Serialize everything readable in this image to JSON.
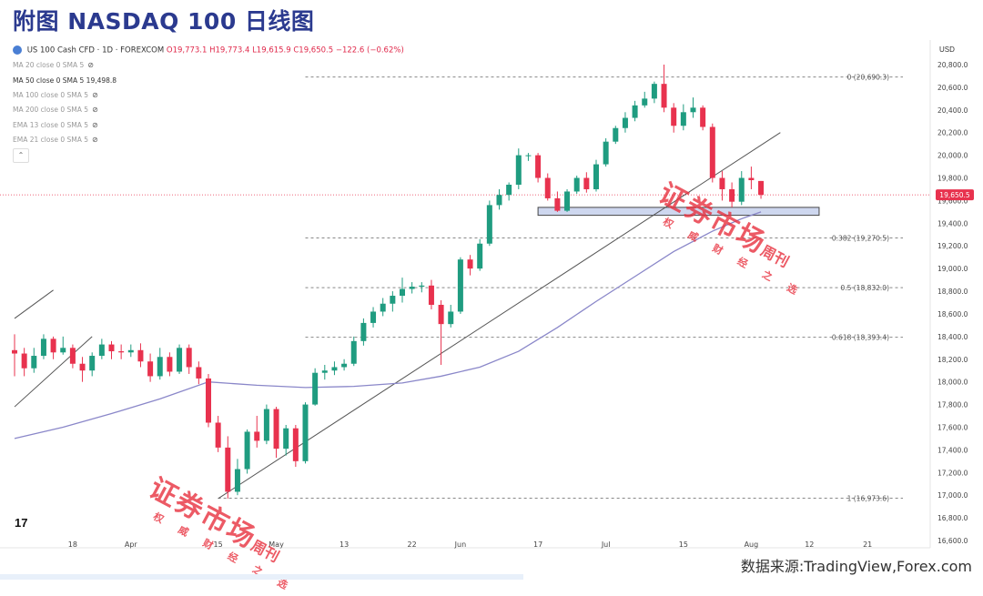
{
  "page_title": "附图  NASDAQ 100 日线图",
  "source_text": "数据来源:TradingView,Forex.com",
  "header": {
    "symbol": "US 100 Cash CFD · 1D · FOREXCOM",
    "ohlc": "O19,773.1 H19,773.4 L19,615.9 C19,650.5 −122.6 (−0.62%)"
  },
  "indicators": [
    {
      "label": "MA 20 close 0 SMA 5",
      "active": false
    },
    {
      "label": "MA 50 close 0 SMA 5  19,498.8",
      "active": true
    },
    {
      "label": "MA 100 close 0 SMA 5",
      "active": false
    },
    {
      "label": "MA 200 close 0 SMA 5",
      "active": false
    },
    {
      "label": "EMA 13 close 0 SMA 5",
      "active": false
    },
    {
      "label": "EMA 21 close 0 SMA 5",
      "active": false
    }
  ],
  "currency": "USD",
  "tv_logo": "17",
  "colors": {
    "up": "#1f9c80",
    "down": "#e8324e",
    "ma": "#8a87c9",
    "trend": "#555555",
    "price_tag": "#e8324e",
    "zone": "#c9d3ee"
  },
  "stamps": [
    {
      "big": "证券市场",
      "small": "权  威  财  经  之  选",
      "side": "周刊"
    },
    {
      "big": "证券市场",
      "small": "权  威  财  经  之  选",
      "side": "周刊"
    }
  ],
  "chart_data": {
    "type": "candlestick",
    "title": "NASDAQ 100 日线图",
    "ylim": [
      16600,
      20800
    ],
    "y_ticks": [
      16600,
      16800,
      17000,
      17200,
      17400,
      17600,
      17800,
      18000,
      18200,
      18400,
      18600,
      18800,
      19000,
      19200,
      19400,
      19600,
      19800,
      20000,
      20200,
      20400,
      20600,
      20800
    ],
    "y_tick_labels": [
      "16,600.0",
      "16,800.0",
      "17,000.0",
      "17,200.0",
      "17,400.0",
      "17,600.0",
      "17,800.0",
      "18,000.0",
      "18,200.0",
      "18,400.0",
      "18,600.0",
      "18,800.0",
      "19,000.0",
      "19,200.0",
      "19,400.0",
      "19,600.0",
      "19,800.0",
      "20,000.0",
      "20,200.0",
      "20,400.0",
      "20,600.0",
      "20,800.0"
    ],
    "x_tick_labels": [
      {
        "label": "18",
        "index": 6
      },
      {
        "label": "Apr",
        "index": 12
      },
      {
        "label": "15",
        "index": 21
      },
      {
        "label": "May",
        "index": 27
      },
      {
        "label": "13",
        "index": 34
      },
      {
        "label": "22",
        "index": 41
      },
      {
        "label": "Jun",
        "index": 46
      },
      {
        "label": "17",
        "index": 54
      },
      {
        "label": "Jul",
        "index": 61
      },
      {
        "label": "15",
        "index": 69
      },
      {
        "label": "Aug",
        "index": 76
      },
      {
        "label": "12",
        "index": 82
      },
      {
        "label": "21",
        "index": 88
      }
    ],
    "last_price": 19650.5,
    "last_price_label": "19,650.5",
    "fib_levels": [
      {
        "level": 0,
        "price": 20690.3,
        "label": "0 (20,690.3)"
      },
      {
        "level": 0.382,
        "price": 19270.5,
        "label": "0.382 (19,270.5)"
      },
      {
        "level": 0.5,
        "price": 18832.0,
        "label": "0.5 (18,832.0)"
      },
      {
        "level": 0.618,
        "price": 18393.4,
        "label": "0.618 (18,393.4)"
      },
      {
        "level": 1,
        "price": 16973.6,
        "label": "1 (16,973.6)"
      }
    ],
    "support_zone": [
      19470,
      19540
    ],
    "candles": [
      [
        18280,
        18250,
        18420,
        18050
      ],
      [
        18250,
        18120,
        18300,
        18050
      ],
      [
        18120,
        18230,
        18300,
        18080
      ],
      [
        18230,
        18380,
        18420,
        18200
      ],
      [
        18380,
        18260,
        18400,
        18200
      ],
      [
        18260,
        18300,
        18400,
        18240
      ],
      [
        18300,
        18160,
        18330,
        18120
      ],
      [
        18160,
        18100,
        18220,
        18000
      ],
      [
        18100,
        18230,
        18260,
        18050
      ],
      [
        18230,
        18330,
        18380,
        18200
      ],
      [
        18330,
        18270,
        18360,
        18200
      ],
      [
        18270,
        18260,
        18330,
        18200
      ],
      [
        18260,
        18280,
        18330,
        18220
      ],
      [
        18280,
        18180,
        18340,
        18130
      ],
      [
        18180,
        18050,
        18250,
        18000
      ],
      [
        18050,
        18220,
        18300,
        18020
      ],
      [
        18220,
        18090,
        18260,
        18050
      ],
      [
        18090,
        18300,
        18330,
        18070
      ],
      [
        18300,
        18130,
        18330,
        18070
      ],
      [
        18130,
        18030,
        18180,
        17980
      ],
      [
        18030,
        17640,
        18070,
        17600
      ],
      [
        17640,
        17420,
        17700,
        17380
      ],
      [
        17420,
        17030,
        17520,
        16970
      ],
      [
        17030,
        17230,
        17320,
        17000
      ],
      [
        17230,
        17560,
        17580,
        17190
      ],
      [
        17560,
        17480,
        17700,
        17420
      ],
      [
        17480,
        17760,
        17800,
        17450
      ],
      [
        17760,
        17410,
        17780,
        17330
      ],
      [
        17410,
        17590,
        17620,
        17350
      ],
      [
        17590,
        17300,
        17620,
        17250
      ],
      [
        17300,
        17800,
        17820,
        17280
      ],
      [
        17800,
        18080,
        18120,
        17790
      ],
      [
        18080,
        18100,
        18150,
        18020
      ],
      [
        18100,
        18130,
        18180,
        18060
      ],
      [
        18130,
        18160,
        18200,
        18100
      ],
      [
        18160,
        18360,
        18400,
        18140
      ],
      [
        18360,
        18520,
        18560,
        18320
      ],
      [
        18520,
        18620,
        18660,
        18480
      ],
      [
        18620,
        18690,
        18740,
        18580
      ],
      [
        18690,
        18760,
        18800,
        18620
      ],
      [
        18760,
        18820,
        18920,
        18700
      ],
      [
        18820,
        18840,
        18880,
        18780
      ],
      [
        18840,
        18850,
        18880,
        18790
      ],
      [
        18850,
        18680,
        18900,
        18640
      ],
      [
        18680,
        18510,
        18720,
        18150
      ],
      [
        18510,
        18620,
        18680,
        18480
      ],
      [
        18620,
        19080,
        19100,
        18600
      ],
      [
        19080,
        19000,
        19120,
        18940
      ],
      [
        19000,
        19220,
        19260,
        18980
      ],
      [
        19220,
        19560,
        19600,
        19200
      ],
      [
        19560,
        19650,
        19700,
        19520
      ],
      [
        19650,
        19740,
        19760,
        19600
      ],
      [
        19740,
        20000,
        20060,
        19700
      ],
      [
        20000,
        20000,
        20020,
        19950
      ],
      [
        20000,
        19800,
        20020,
        19760
      ],
      [
        19800,
        19620,
        19840,
        19600
      ],
      [
        19620,
        19510,
        19680,
        19500
      ],
      [
        19510,
        19680,
        19700,
        19500
      ],
      [
        19680,
        19800,
        19820,
        19660
      ],
      [
        19800,
        19700,
        19850,
        19670
      ],
      [
        19700,
        19920,
        19960,
        19680
      ],
      [
        19920,
        20120,
        20150,
        19900
      ],
      [
        20120,
        20240,
        20260,
        20100
      ],
      [
        20240,
        20330,
        20380,
        20200
      ],
      [
        20330,
        20440,
        20480,
        20300
      ],
      [
        20440,
        20500,
        20560,
        20420
      ],
      [
        20500,
        20630,
        20650,
        20460
      ],
      [
        20630,
        20420,
        20800,
        20380
      ],
      [
        20420,
        20260,
        20460,
        20200
      ],
      [
        20260,
        20380,
        20450,
        20220
      ],
      [
        20380,
        20420,
        20510,
        20330
      ],
      [
        20420,
        20250,
        20440,
        20220
      ],
      [
        20250,
        19800,
        20280,
        19760
      ],
      [
        19800,
        19700,
        19860,
        19600
      ],
      [
        19700,
        19590,
        19760,
        19540
      ],
      [
        19590,
        19800,
        19860,
        19560
      ],
      [
        19800,
        19780,
        19900,
        19700
      ],
      [
        19773,
        19650,
        19773,
        19616
      ]
    ],
    "ma50": [
      [
        0,
        17500
      ],
      [
        5,
        17600
      ],
      [
        10,
        17720
      ],
      [
        15,
        17850
      ],
      [
        20,
        18000
      ],
      [
        25,
        17970
      ],
      [
        30,
        17950
      ],
      [
        35,
        17960
      ],
      [
        40,
        17990
      ],
      [
        44,
        18050
      ],
      [
        48,
        18130
      ],
      [
        52,
        18270
      ],
      [
        56,
        18480
      ],
      [
        60,
        18710
      ],
      [
        64,
        18930
      ],
      [
        68,
        19150
      ],
      [
        72,
        19330
      ],
      [
        75,
        19440
      ],
      [
        77,
        19500
      ]
    ],
    "trendlines": [
      {
        "from": [
          21,
          16970
        ],
        "to": [
          79,
          20200
        ]
      },
      {
        "from": [
          0,
          17780
        ],
        "to": [
          8,
          18400
        ]
      },
      {
        "from": [
          0,
          18560
        ],
        "to": [
          4,
          18810
        ]
      }
    ]
  }
}
